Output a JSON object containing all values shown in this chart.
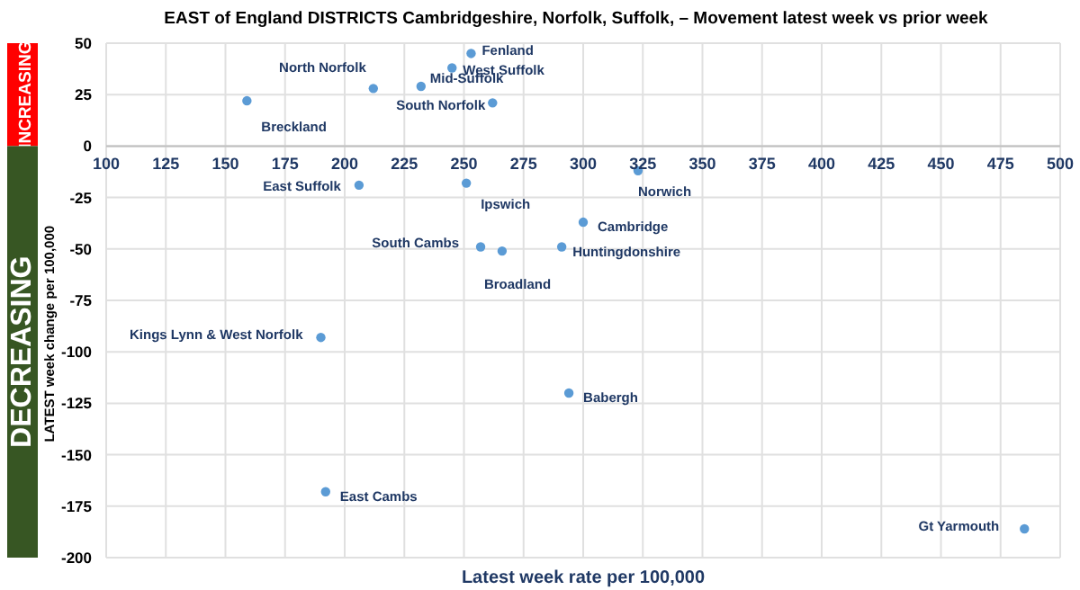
{
  "chart_data": {
    "type": "scatter",
    "title": "EAST of England DISTRICTS Cambridgeshire, Norfolk, Suffolk, – Movement latest week vs prior week",
    "xlabel": "Latest week rate per 100,000",
    "ylabel": "LATEST week change per 100,000",
    "x": [
      253,
      245,
      212,
      232,
      262,
      159,
      323,
      206,
      251,
      257,
      266,
      190,
      300,
      291,
      294,
      192,
      485
    ],
    "series": [
      {
        "color": "#5b9bd5",
        "values": [
          45,
          38,
          28,
          29,
          21,
          22,
          -12,
          -19,
          -18,
          -49,
          -51,
          -93,
          -37,
          -49,
          -120,
          -168,
          -186
        ],
        "value_labels": [
          "Fenland",
          "West Suffolk",
          "North Norfolk",
          "Mid-Suffolk",
          "South Norfolk",
          "Breckland",
          "Norwich",
          "East Suffolk",
          "Ipswich",
          "South Cambs",
          "Broadland",
          "Kings Lynn & West Norfolk",
          "Cambridge",
          "Huntingdonshire",
          "Babergh",
          "East Cambs",
          "Gt Yarmouth"
        ]
      }
    ],
    "xlim": [
      100,
      500
    ],
    "xticks": [
      100,
      125,
      150,
      175,
      200,
      225,
      250,
      275,
      300,
      325,
      350,
      375,
      400,
      425,
      450,
      475,
      500
    ],
    "ylim": [
      -200,
      50
    ],
    "yticks": [
      -200,
      -175,
      -150,
      -125,
      -100,
      -75,
      -50,
      -25,
      0,
      25,
      50
    ],
    "annotations": [
      "INCREASING",
      "DECREASING"
    ],
    "grid": true,
    "marker": "circle"
  }
}
